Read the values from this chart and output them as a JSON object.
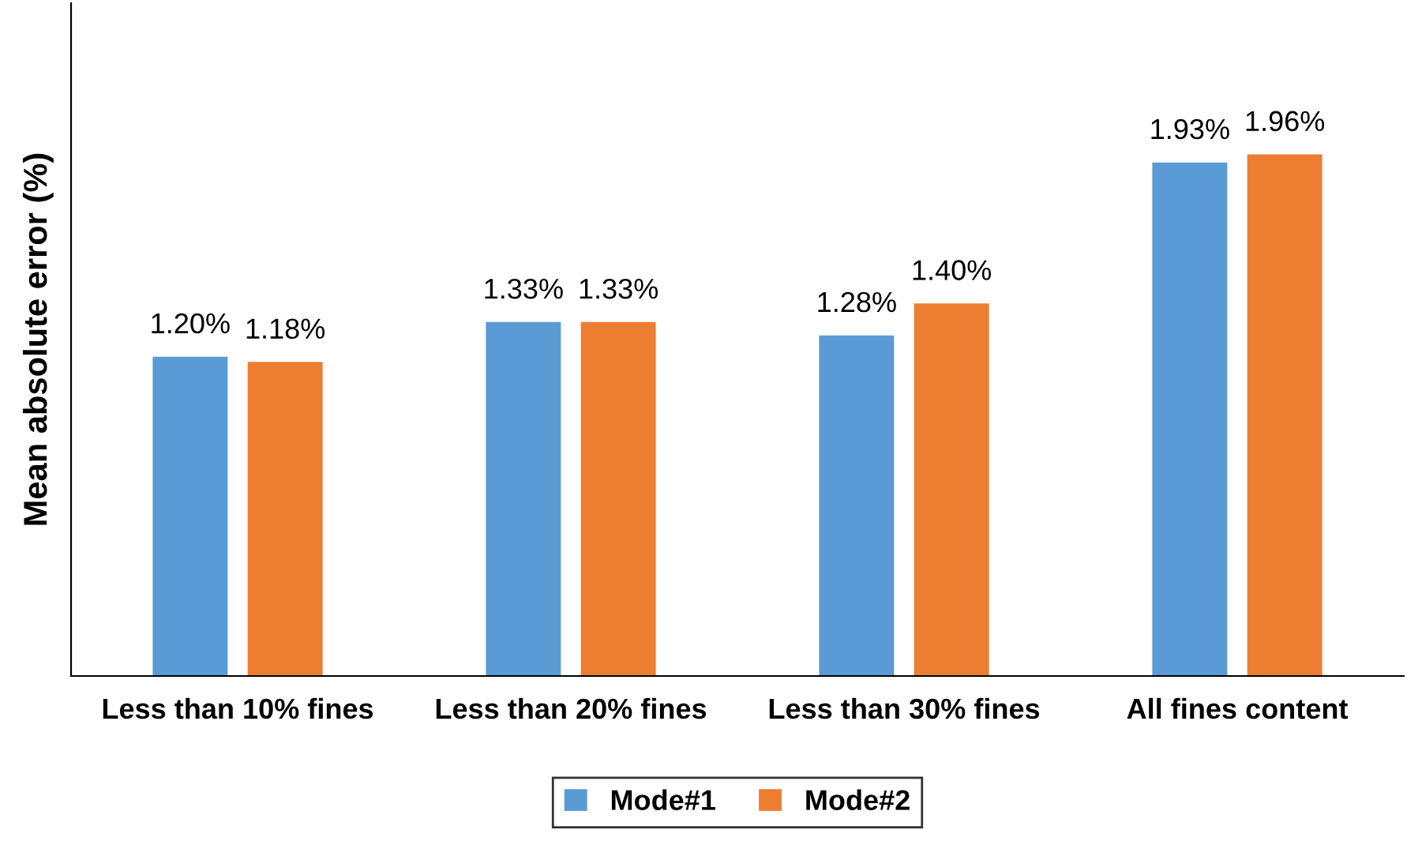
{
  "chart_data": {
    "type": "bar",
    "ylabel": "Mean absolute error (%)",
    "categories": [
      "Less than 10% fines",
      "Less than 20% fines",
      "Less than 30% fines",
      "All fines content"
    ],
    "series": [
      {
        "name": "Mode#1",
        "color": "#5b9bd5",
        "values": [
          1.2,
          1.33,
          1.28,
          1.93
        ],
        "value_labels": [
          "1.20%",
          "1.33%",
          "1.28%",
          "1.93%"
        ]
      },
      {
        "name": "Mode#2",
        "color": "#ed7d31",
        "values": [
          1.18,
          1.33,
          1.4,
          1.96
        ],
        "value_labels": [
          "1.18%",
          "1.33%",
          "1.40%",
          "1.96%"
        ]
      }
    ],
    "legend": "bottom",
    "grid": false,
    "tick_labels": "x"
  }
}
